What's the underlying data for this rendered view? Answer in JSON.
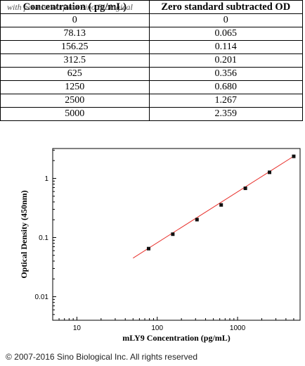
{
  "table": {
    "watermark": "with permission from Sino Biological",
    "headers": [
      "Concentration ( pg/mL)",
      "Zero standard subtracted OD"
    ],
    "rows": [
      [
        "0",
        "0"
      ],
      [
        "78.13",
        "0.065"
      ],
      [
        "156.25",
        "0.114"
      ],
      [
        "312.5",
        "0.201"
      ],
      [
        "625",
        "0.356"
      ],
      [
        "1250",
        "0.680"
      ],
      [
        "2500",
        "1.267"
      ],
      [
        "5000",
        "2.359"
      ]
    ]
  },
  "chart_data": {
    "type": "scatter",
    "title": "",
    "xlabel": "mLY9 Concentration (pg/mL)",
    "ylabel": "Optical Density (450nm)",
    "xscale": "log",
    "yscale": "log",
    "xlim": [
      5,
      6000
    ],
    "ylim": [
      0.004,
      3.2
    ],
    "x_ticks": [
      10,
      100,
      1000
    ],
    "x_tick_labels": [
      "10",
      "100",
      "1000"
    ],
    "y_ticks": [
      0.01,
      0.1,
      1
    ],
    "y_tick_labels": [
      "0.01",
      "0.1",
      "1"
    ],
    "grid": false,
    "series": [
      {
        "marker_color": "#111111",
        "x": [
          78.13,
          156.25,
          312.5,
          625,
          1250,
          2500,
          5000
        ],
        "y": [
          0.065,
          0.114,
          0.201,
          0.356,
          0.68,
          1.267,
          2.359
        ]
      }
    ],
    "fit_line": {
      "color": "#e8312c",
      "x": [
        50,
        5200
      ],
      "y": [
        0.045,
        2.45
      ]
    }
  },
  "footer": {
    "copyright": "© 2007-2016 Sino Biological Inc. All rights reserved"
  }
}
